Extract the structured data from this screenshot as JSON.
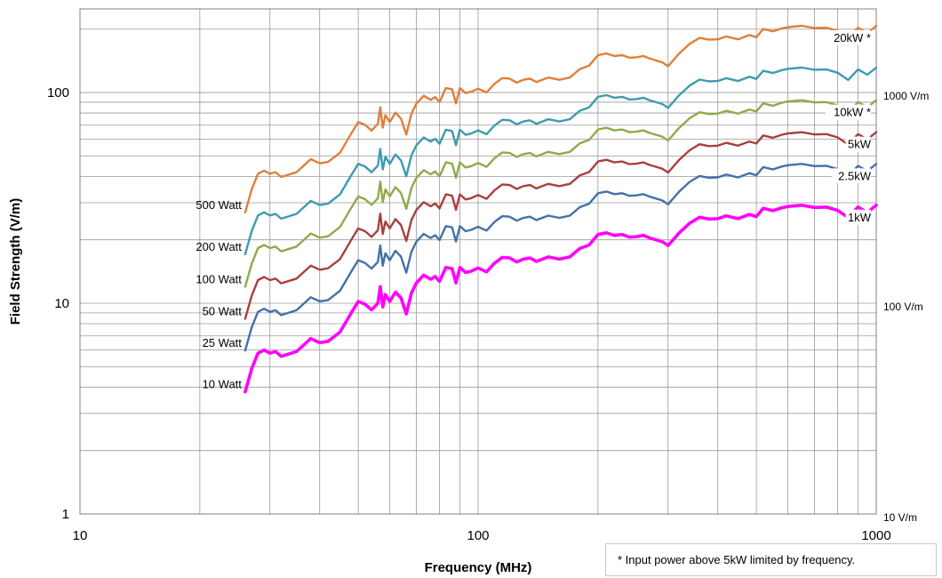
{
  "chart_data": {
    "type": "line",
    "xlabel": "Frequency (MHz)",
    "ylabel": "Field Strength (V/m)",
    "xscale": "log",
    "yscale": "log",
    "xlim": [
      10,
      1000
    ],
    "ylim": [
      1,
      250
    ],
    "grid": true,
    "xticks": [
      "10",
      "100",
      "1000"
    ],
    "yticks": [
      "1",
      "10",
      "100"
    ],
    "right_axis_labels": [
      {
        "text": "1000 V/m",
        "value": 100
      },
      {
        "text": "100 V/m",
        "value": 10
      },
      {
        "text": "10 V/m",
        "value": 1
      }
    ],
    "base_profile": {
      "x": [
        26,
        27,
        28,
        29,
        30,
        31,
        32,
        33,
        35,
        38,
        40,
        42,
        45,
        48,
        50,
        52,
        54,
        56,
        56.8,
        57.6,
        58.5,
        60,
        62,
        64,
        66,
        68,
        70,
        73,
        76,
        78,
        80,
        83,
        86,
        88,
        90,
        93,
        96,
        100,
        105,
        110,
        115,
        120,
        125,
        130,
        135,
        140,
        150,
        160,
        170,
        180,
        190,
        200,
        210,
        220,
        230,
        240,
        250,
        260,
        270,
        280,
        290,
        300,
        320,
        340,
        360,
        380,
        400,
        420,
        450,
        480,
        500,
        520,
        550,
        580,
        600,
        650,
        700,
        750,
        800,
        850,
        900,
        950,
        1000
      ],
      "y": [
        3.8,
        4.9,
        5.8,
        6.0,
        5.8,
        5.9,
        5.6,
        5.7,
        5.9,
        6.8,
        6.5,
        6.6,
        7.3,
        9.0,
        10.2,
        9.9,
        9.3,
        10.0,
        12.0,
        9.6,
        11.0,
        10.2,
        11.3,
        10.6,
        8.9,
        11.2,
        12.5,
        13.6,
        13.0,
        13.4,
        12.7,
        14.8,
        14.6,
        12.5,
        14.8,
        14.0,
        14.2,
        14.7,
        14.1,
        15.5,
        16.5,
        16.4,
        15.7,
        16.2,
        16.4,
        15.8,
        16.6,
        16.2,
        16.6,
        18.2,
        18.9,
        21.2,
        21.6,
        21.0,
        21.2,
        20.6,
        20.7,
        21.0,
        20.4,
        20.0,
        19.6,
        18.8,
        21.6,
        24.0,
        25.6,
        25.1,
        25.2,
        26.0,
        25.2,
        26.4,
        25.8,
        28.2,
        27.5,
        28.4,
        28.8,
        29.2,
        28.5,
        28.6,
        27.6,
        25.5,
        28.6,
        27.0,
        29.2
      ]
    },
    "series": [
      {
        "name": "500 Watt",
        "end_label": "20kW *",
        "scale": 7.1,
        "color": "#e07f3a",
        "width": 2.4
      },
      {
        "name": "200 Watt",
        "end_label": "",
        "scale": 4.5,
        "color": "#3d9bb0",
        "width": 2.4
      },
      {
        "name": "100 Watt",
        "end_label": "10kW *",
        "scale": 3.15,
        "color": "#8faa4c",
        "width": 2.4
      },
      {
        "name": "50 Watt",
        "end_label": "5kW",
        "scale": 2.22,
        "color": "#a8403d",
        "width": 2.4
      },
      {
        "name": "25 Watt",
        "end_label": "2.5kW",
        "scale": 1.57,
        "color": "#4470a8",
        "width": 2.4
      },
      {
        "name": "10 Watt",
        "end_label": "1kW",
        "scale": 1.0,
        "color": "#ff00ff",
        "width": 3.6
      }
    ]
  },
  "footnote": "*  Input power above 5kW limited by frequency."
}
